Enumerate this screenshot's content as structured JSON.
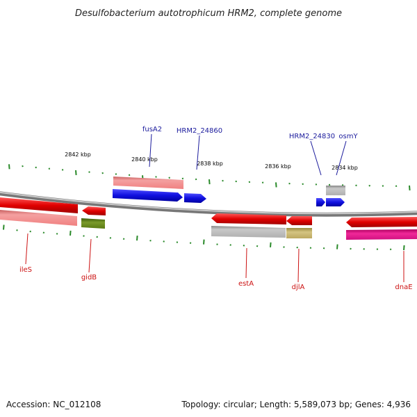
{
  "title": "Desulfobacterium autotrophicum HRM2, complete genome",
  "footer": {
    "accession": "Accession: NC_012108",
    "summary": "Topology: circular; Length: 5,589,073 bp; Genes: 4,936"
  },
  "scale": {
    "labels": [
      "2842 kbp",
      "2840 kbp",
      "2838 kbp",
      "2836 kbp",
      "2834 kbp"
    ]
  },
  "labels_top": [
    "fusA2",
    "HRM2_24860",
    "HRM2_24830",
    "osmY"
  ],
  "labels_bottom": [
    "ileS",
    "gidB",
    "estA",
    "djlA",
    "dnaE"
  ],
  "colors": {
    "backbone": "#888888",
    "forward_gene": "#1010e0",
    "reverse_gene": "#e00000",
    "tick": "#2a8a2a",
    "cds_light_red": "#f08888",
    "cds_gray": "#b8b8b8",
    "cds_olive": "#6b8a1e",
    "cds_khaki": "#c8b870",
    "cds_magenta": "#e01890"
  }
}
